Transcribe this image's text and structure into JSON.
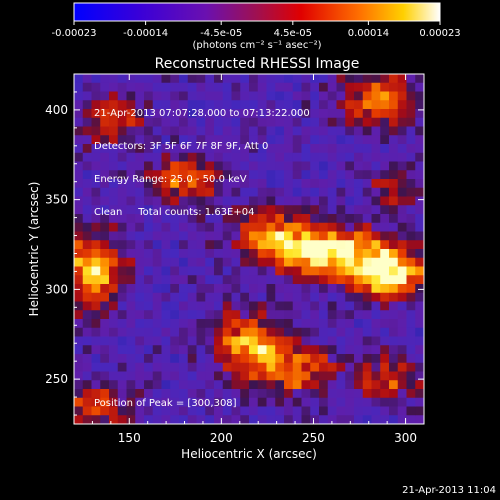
{
  "chart_data": {
    "type": "heatmap",
    "title": "Reconstructed RHESSI Image",
    "xlabel": "Heliocentric X (arcsec)",
    "ylabel": "Heliocentric Y (arcsec)",
    "xlim": [
      120,
      310
    ],
    "ylim": [
      225,
      420
    ],
    "x_ticks": [
      150,
      200,
      250,
      300
    ],
    "y_ticks": [
      250,
      300,
      350,
      400
    ],
    "colorbar": {
      "ticks": [
        "-0.00023",
        "-0.00014",
        "-4.5e-05",
        "4.5e-05",
        "0.00014",
        "0.00023"
      ],
      "unit_label": "(photons cm⁻² s⁻¹ asec⁻²)",
      "range": [
        -0.00023,
        0.00023
      ],
      "colors": [
        "#0000ff",
        "#5a00c8",
        "#8a1a8a",
        "#d80000",
        "#ff5a00",
        "#ffd800",
        "#ffffff"
      ]
    },
    "annotations": [
      "21-Apr-2013 07:07:28.000 to 07:13:22.000",
      "Detectors: 3F 5F 6F 7F 8F 9F, Att 0",
      "Energy Range: 25.0 - 50.0 keV",
      "Clean     Total counts: 1.63E+04"
    ],
    "peak_label": "Position of Peak = [300,308]",
    "bright_regions": [
      {
        "x": 290,
        "y": 310,
        "amp": 1.0,
        "sx": 14,
        "sy": 10
      },
      {
        "x": 260,
        "y": 320,
        "amp": 0.85,
        "sx": 20,
        "sy": 10
      },
      {
        "x": 230,
        "y": 330,
        "amp": 0.7,
        "sx": 16,
        "sy": 10
      },
      {
        "x": 130,
        "y": 310,
        "amp": 0.85,
        "sx": 12,
        "sy": 14
      },
      {
        "x": 215,
        "y": 270,
        "amp": 0.75,
        "sx": 14,
        "sy": 12
      },
      {
        "x": 240,
        "y": 255,
        "amp": 0.6,
        "sx": 14,
        "sy": 10
      },
      {
        "x": 285,
        "y": 405,
        "amp": 0.7,
        "sx": 14,
        "sy": 10
      },
      {
        "x": 180,
        "y": 360,
        "amp": 0.65,
        "sx": 14,
        "sy": 9
      },
      {
        "x": 140,
        "y": 395,
        "amp": 0.55,
        "sx": 12,
        "sy": 9
      },
      {
        "x": 130,
        "y": 235,
        "amp": 0.55,
        "sx": 14,
        "sy": 8
      },
      {
        "x": 290,
        "y": 250,
        "amp": 0.5,
        "sx": 12,
        "sy": 10
      },
      {
        "x": 295,
        "y": 355,
        "amp": 0.45,
        "sx": 10,
        "sy": 8
      }
    ]
  },
  "timestamp": "21-Apr-2013 11:04"
}
